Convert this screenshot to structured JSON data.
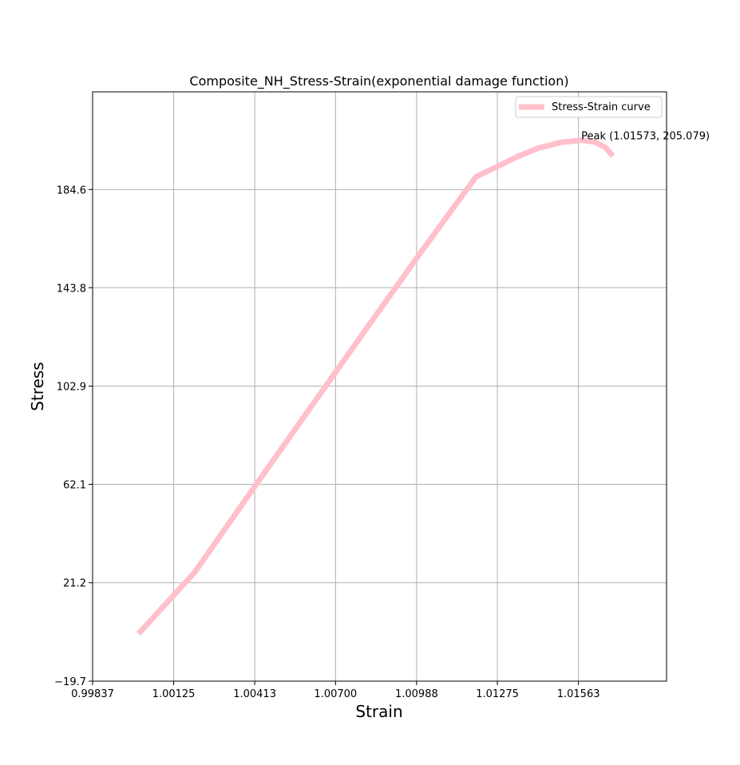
{
  "chart_data": {
    "type": "line",
    "title": "Composite_NH_Stress-Strain(exponential damage function)",
    "xlabel": "Strain",
    "ylabel": "Stress",
    "xlim": [
      0.99837,
      1.01876
    ],
    "ylim": [
      -19.7,
      225.2
    ],
    "xticks": [
      0.99837,
      1.00125,
      1.00413,
      1.007,
      1.00988,
      1.01275,
      1.01563
    ],
    "xtick_labels": [
      "0.99837",
      "1.00125",
      "1.00413",
      "1.00700",
      "1.00988",
      "1.01275",
      "1.01563"
    ],
    "yticks": [
      -19.7,
      21.2,
      62.1,
      102.9,
      143.8,
      184.6
    ],
    "ytick_labels": [
      "−19.7",
      "21.2",
      "62.1",
      "102.9",
      "143.8",
      "184.6"
    ],
    "grid": true,
    "legend_position": "upper-right",
    "colors": {
      "series": "#ffc0cb",
      "grid": "#b0b0b0",
      "axes": "#000000"
    },
    "series": [
      {
        "name": "Stress-Strain curve",
        "x": [
          1.0,
          1.002,
          1.004,
          1.006,
          1.008,
          1.01,
          1.012,
          1.0129,
          1.0135,
          1.0142,
          1.015,
          1.01573,
          1.0162,
          1.0166,
          1.01685
        ],
        "y": [
          0.0,
          25.6,
          59.0,
          92.2,
          125.2,
          158.0,
          190.0,
          195.0,
          198.5,
          201.8,
          204.2,
          205.079,
          204.4,
          202.0,
          198.5
        ]
      }
    ],
    "annotations": [
      {
        "text": "Peak (1.01573, 205.079)",
        "x": 1.01573,
        "y": 205.079
      }
    ]
  }
}
